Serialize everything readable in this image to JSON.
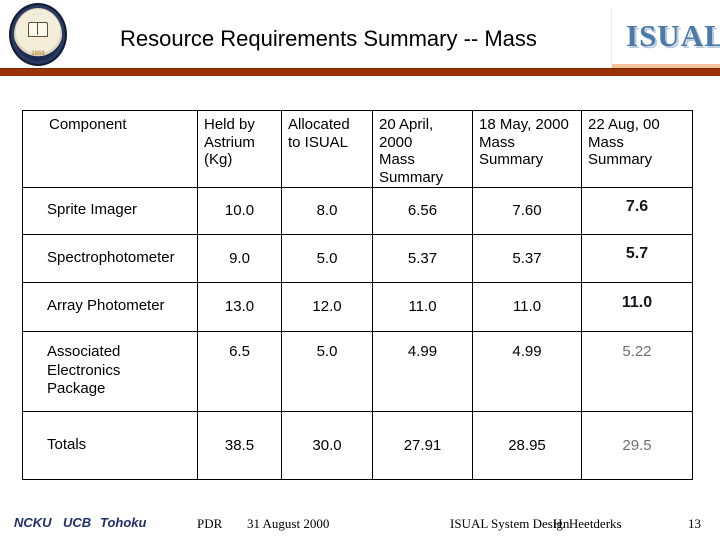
{
  "header": {
    "title": "Resource Requirements Summary -- Mass",
    "logo_wordmark": "ISUAL",
    "seal_year": "1868"
  },
  "table": {
    "columns": [
      "Component",
      "Held by\nAstrium\n(Kg)",
      "Allocated\nto ISUAL",
      "20 April, 2000\nMass\nSummary",
      "18 May, 2000\nMass\nSummary",
      "22 Aug, 00\nMass\nSummary"
    ],
    "rows": [
      {
        "component": "Sprite Imager",
        "values": [
          "10.0",
          "8.0",
          "6.56",
          "7.60",
          "7.6"
        ]
      },
      {
        "component": "Spectrophotometer",
        "values": [
          "9.0",
          "5.0",
          "5.37",
          "5.37",
          "5.7"
        ]
      },
      {
        "component": "Array Photometer",
        "values": [
          "13.0",
          "12.0",
          "11.0",
          "11.0",
          "11.0"
        ]
      },
      {
        "component": "Associated\nElectronics\nPackage",
        "values": [
          "6.5",
          "5.0",
          "4.99",
          "4.99",
          "5.22"
        ]
      },
      {
        "component": "Totals",
        "values": [
          "38.5",
          "30.0",
          "27.91",
          "28.95",
          "29.5"
        ]
      }
    ]
  },
  "footer": {
    "orgs": {
      "ncku": "NCKU",
      "ucb": "UCB",
      "tohoku": "Tohoku"
    },
    "review_label": "PDR",
    "date": "31 August 2000",
    "doc_title": "ISUAL System Design",
    "author": "H. Heetderks",
    "page_number": "13"
  },
  "colors": {
    "divider_bar": "#993306",
    "isual_blue": "#4b79a8",
    "footer_navy": "#1f2f68",
    "aug_light_gray": "#6f6f6f",
    "tan_rule": "#f0c39b"
  }
}
